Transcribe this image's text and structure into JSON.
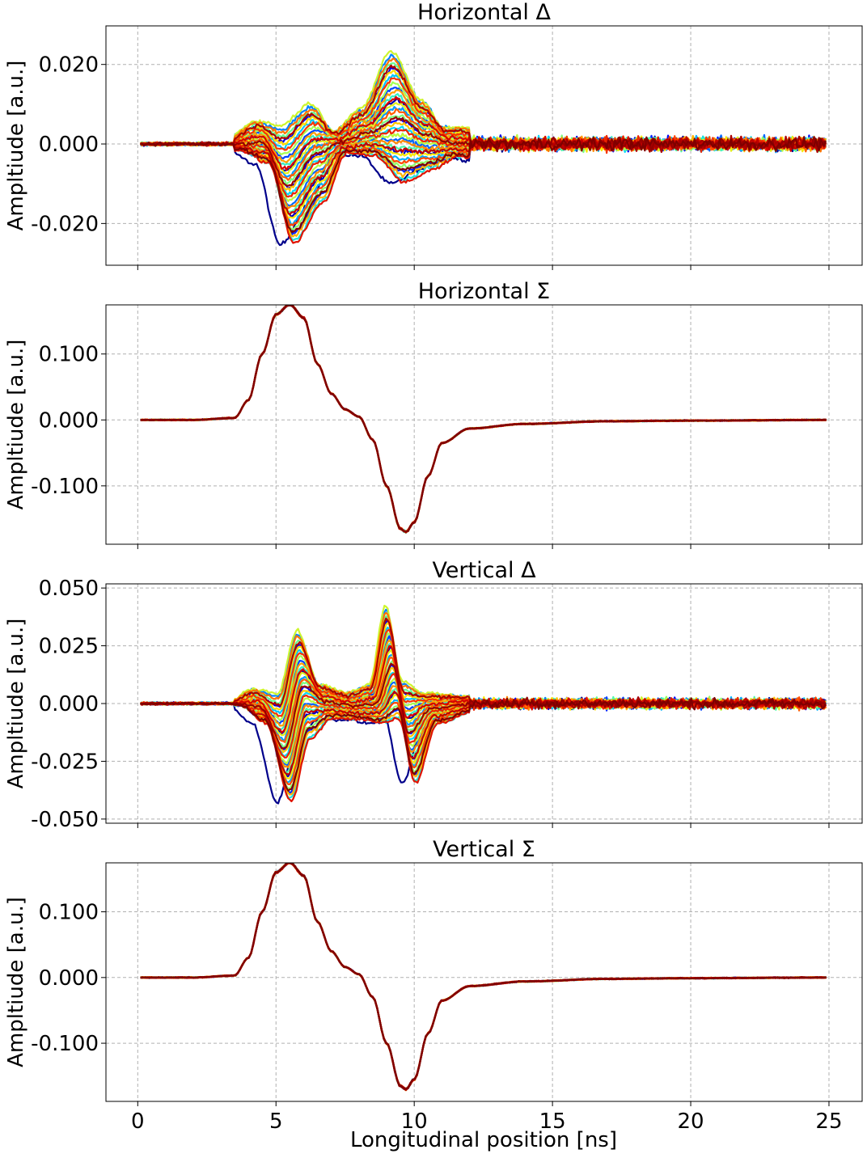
{
  "figure": {
    "xlabel": "Longitudinal position [ns]"
  },
  "chart_data": [
    {
      "type": "line",
      "title": "Horizontal Δ",
      "ylabel": "Ampltiude [a.u.]",
      "xlim": [
        -1.15,
        26.2
      ],
      "ylim": [
        -0.0305,
        0.0297
      ],
      "xticks": [
        0,
        5,
        10,
        15,
        20,
        25
      ],
      "yticks": [
        0.02,
        0.0,
        -0.02
      ],
      "ytick_labels": [
        "0.020",
        "0.000",
        "-0.020"
      ],
      "grid": true,
      "x_range": [
        0.1,
        24.9
      ],
      "series_count": 40,
      "colormap": [
        "#00008b",
        "#0000ff",
        "#0080ff",
        "#00d5ff",
        "#5cff9a",
        "#b0ff4a",
        "#ffe600",
        "#ff9900",
        "#ff4400",
        "#d40000",
        "#7f0000"
      ],
      "envelope": {
        "x": [
          0.1,
          3.5,
          4.5,
          5.4,
          6.5,
          7.3,
          8.3,
          9.4,
          10.5,
          11.3,
          12.5,
          24.9
        ],
        "y_min": [
          -0.0015,
          -0.002,
          -0.006,
          -0.028,
          -0.017,
          -0.003,
          -0.004,
          -0.013,
          -0.008,
          -0.004,
          -0.005,
          -0.005
        ],
        "y_max": [
          0.0015,
          0.002,
          0.007,
          0.008,
          0.013,
          0.004,
          0.01,
          0.027,
          0.013,
          0.005,
          0.005,
          0.005
        ]
      },
      "noise_level": 0.0015
    },
    {
      "type": "line",
      "title": "Horizontal Σ",
      "ylabel": "Ampltiude [a.u.]",
      "xlim": [
        -1.15,
        26.2
      ],
      "ylim": [
        -0.1885,
        0.1745
      ],
      "xticks": [
        0,
        5,
        10,
        15,
        20,
        25
      ],
      "yticks": [
        0.1,
        0.0,
        -0.1
      ],
      "ytick_labels": [
        "0.100",
        "0.000",
        "-0.100"
      ],
      "grid": true,
      "series_count": 40,
      "colormap": [
        "#00008b",
        "#0000ff",
        "#0080ff",
        "#00d5ff",
        "#5cff9a",
        "#b0ff4a",
        "#ffe600",
        "#ff9900",
        "#ff4400",
        "#d40000",
        "#7f0000"
      ],
      "x": [
        0.1,
        2.0,
        3.5,
        4.0,
        4.5,
        5.0,
        5.5,
        6.0,
        6.5,
        7.0,
        7.5,
        8.0,
        8.5,
        9.0,
        9.5,
        9.7,
        10.0,
        10.5,
        11.0,
        12.0,
        14.0,
        17.0,
        20.0,
        24.9
      ],
      "y": [
        0.0,
        0.0,
        0.003,
        0.03,
        0.1,
        0.16,
        0.175,
        0.155,
        0.085,
        0.04,
        0.016,
        0.005,
        -0.03,
        -0.1,
        -0.165,
        -0.17,
        -0.155,
        -0.085,
        -0.035,
        -0.013,
        -0.006,
        -0.002,
        -0.001,
        0.0
      ]
    },
    {
      "type": "line",
      "title": "Vertical Δ",
      "ylabel": "Ampltiude [a.u.]",
      "xlim": [
        -1.15,
        26.2
      ],
      "ylim": [
        -0.0518,
        0.0518
      ],
      "xticks": [
        0,
        5,
        10,
        15,
        20,
        25
      ],
      "yticks": [
        0.05,
        0.025,
        0.0,
        -0.025,
        -0.05
      ],
      "ytick_labels": [
        "0.050",
        "0.025",
        "0.000",
        "-0.025",
        "-0.050"
      ],
      "grid": true,
      "series_count": 40,
      "colormap": [
        "#00008b",
        "#0000ff",
        "#0080ff",
        "#00d5ff",
        "#5cff9a",
        "#b0ff4a",
        "#ffe600",
        "#ff9900",
        "#ff4400",
        "#d40000",
        "#7f0000"
      ],
      "envelope": {
        "x": [
          0.1,
          3.5,
          4.4,
          5.3,
          6.0,
          6.8,
          7.8,
          8.6,
          9.2,
          9.8,
          10.6,
          12.0,
          24.9
        ],
        "y_min": [
          -0.001,
          -0.001,
          -0.01,
          -0.047,
          -0.02,
          -0.008,
          -0.008,
          -0.01,
          -0.012,
          -0.039,
          -0.01,
          -0.004,
          -0.004
        ],
        "y_max": [
          0.001,
          0.001,
          0.008,
          0.01,
          0.037,
          0.01,
          0.006,
          0.01,
          0.048,
          0.015,
          0.006,
          0.004,
          0.004
        ]
      },
      "noise_level": 0.002
    },
    {
      "type": "line",
      "title": "Vertical Σ",
      "ylabel": "Ampltiude [a.u.]",
      "xlabel": "Longitudinal position [ns]",
      "xlim": [
        -1.15,
        26.2
      ],
      "ylim": [
        -0.1885,
        0.1745
      ],
      "xticks": [
        0,
        5,
        10,
        15,
        20,
        25
      ],
      "xtick_labels": [
        "0",
        "5",
        "10",
        "15",
        "20",
        "25"
      ],
      "yticks": [
        0.1,
        0.0,
        -0.1
      ],
      "ytick_labels": [
        "0.100",
        "0.000",
        "-0.100"
      ],
      "grid": true,
      "series_count": 40,
      "colormap": [
        "#00008b",
        "#0000ff",
        "#0080ff",
        "#00d5ff",
        "#5cff9a",
        "#b0ff4a",
        "#ffe600",
        "#ff9900",
        "#ff4400",
        "#d40000",
        "#7f0000"
      ],
      "x": [
        0.1,
        2.0,
        3.5,
        4.0,
        4.5,
        5.0,
        5.5,
        6.0,
        6.5,
        7.0,
        7.5,
        8.0,
        8.5,
        9.0,
        9.5,
        9.7,
        10.0,
        10.5,
        11.0,
        12.0,
        14.0,
        17.0,
        20.0,
        24.9
      ],
      "y": [
        0.0,
        0.0,
        0.003,
        0.03,
        0.1,
        0.16,
        0.175,
        0.155,
        0.085,
        0.04,
        0.016,
        0.005,
        -0.03,
        -0.1,
        -0.165,
        -0.17,
        -0.155,
        -0.085,
        -0.035,
        -0.013,
        -0.006,
        -0.002,
        -0.001,
        0.0
      ]
    }
  ]
}
